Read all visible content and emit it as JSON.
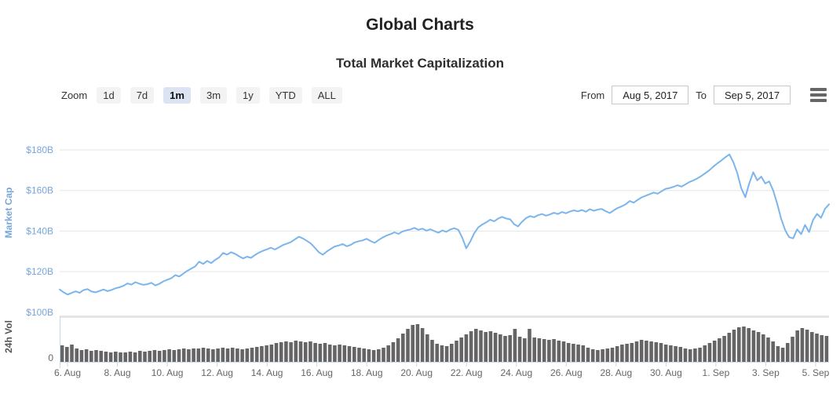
{
  "page": {
    "title": "Global Charts",
    "subtitle": "Total Market Capitalization"
  },
  "toolbar": {
    "zoom_label": "Zoom",
    "buttons": [
      {
        "label": "1d",
        "selected": false
      },
      {
        "label": "7d",
        "selected": false
      },
      {
        "label": "1m",
        "selected": true
      },
      {
        "label": "3m",
        "selected": false
      },
      {
        "label": "1y",
        "selected": false
      },
      {
        "label": "YTD",
        "selected": false
      },
      {
        "label": "ALL",
        "selected": false
      }
    ],
    "from_label": "From",
    "from_value": "Aug 5, 2017",
    "to_label": "To",
    "to_value": "Sep 5, 2017",
    "menu_icon": "hamburger-icon"
  },
  "theme": {
    "line_color": "#7cb5ec",
    "line_axis_text_color": "#76a6de",
    "bar_color": "#656565",
    "grid_color": "#e6e6e6",
    "axis_line_color": "#ccd6eb",
    "x_label_color": "#666666",
    "selected_button_bg": "#dce3f2"
  },
  "chart_data": {
    "type": "line",
    "title": "Total Market Capitalization",
    "grid": true,
    "legend": false,
    "x_axis": {
      "range_start": "Aug 5, 2017",
      "range_end": "Sep 5, 2017",
      "tick_labels": [
        "6. Aug",
        "8. Aug",
        "10. Aug",
        "12. Aug",
        "14. Aug",
        "16. Aug",
        "18. Aug",
        "20. Aug",
        "22. Aug",
        "24. Aug",
        "26. Aug",
        "28. Aug",
        "30. Aug",
        "1. Sep",
        "3. Sep",
        "5. Sep"
      ]
    },
    "series": [
      {
        "name": "Market Cap",
        "type": "line",
        "color": "#7cb5ec",
        "unit": "USD billions",
        "axis": {
          "title": "Market Cap",
          "tick_labels": [
            "$180B",
            "$160B",
            "$140B",
            "$120B",
            "$100B"
          ],
          "min": 100,
          "max": 180
        },
        "values": [
          111.2,
          109.8,
          108.7,
          109.5,
          110.3,
          109.6,
          110.9,
          111.4,
          110.2,
          109.8,
          110.5,
          111.2,
          110.4,
          111.0,
          111.8,
          112.3,
          113.0,
          114.2,
          113.6,
          114.8,
          114.1,
          113.5,
          113.8,
          114.5,
          113.2,
          114.0,
          115.2,
          116.0,
          116.8,
          118.3,
          117.6,
          119.0,
          120.4,
          121.5,
          122.6,
          124.9,
          123.8,
          125.3,
          124.2,
          125.8,
          127.0,
          129.2,
          128.4,
          129.6,
          128.8,
          127.6,
          126.5,
          127.4,
          126.8,
          128.2,
          129.4,
          130.3,
          131.0,
          131.8,
          130.9,
          132.0,
          133.1,
          133.8,
          134.6,
          135.9,
          137.2,
          136.4,
          135.2,
          133.9,
          131.8,
          129.6,
          128.3,
          129.9,
          131.2,
          132.4,
          132.9,
          133.6,
          132.5,
          133.2,
          134.4,
          135.0,
          135.4,
          136.2,
          135.1,
          134.2,
          135.6,
          136.8,
          137.8,
          138.5,
          139.4,
          138.6,
          139.8,
          140.4,
          140.8,
          141.6,
          140.6,
          141.2,
          140.2,
          140.9,
          140.0,
          139.2,
          140.3,
          139.6,
          140.8,
          141.4,
          140.6,
          136.8,
          131.5,
          134.8,
          138.9,
          141.8,
          143.2,
          144.3,
          145.6,
          144.8,
          146.2,
          147.0,
          146.2,
          145.8,
          143.4,
          142.3,
          144.6,
          146.4,
          147.4,
          146.8,
          147.8,
          148.4,
          147.6,
          148.2,
          149.0,
          148.4,
          149.4,
          148.8,
          149.6,
          150.2,
          149.7,
          150.4,
          149.5,
          150.8,
          150.0,
          150.6,
          150.9,
          149.8,
          148.9,
          150.2,
          151.4,
          152.2,
          153.2,
          154.8,
          154.0,
          155.4,
          156.6,
          157.4,
          158.2,
          159.0,
          158.4,
          159.6,
          160.8,
          161.2,
          161.8,
          162.6,
          161.9,
          163.0,
          164.2,
          165.0,
          166.0,
          167.2,
          168.6,
          170.0,
          171.8,
          173.4,
          174.8,
          176.4,
          177.8,
          174.0,
          168.5,
          161.0,
          156.7,
          163.5,
          169.0,
          165.0,
          166.8,
          163.5,
          164.5,
          160.0,
          153.5,
          146.0,
          140.5,
          137.0,
          136.4,
          140.8,
          138.5,
          143.0,
          139.5,
          145.5,
          148.5,
          146.5,
          151.0,
          153.2
        ]
      },
      {
        "name": "24h Vol",
        "type": "column",
        "color": "#656565",
        "unit": "relative height, axis unlabeled (only 0 shown)",
        "axis": {
          "title": "24h Vol",
          "tick_labels": [
            "0"
          ],
          "min": 0
        },
        "values": [
          21,
          19,
          22,
          17,
          15,
          16,
          14,
          15,
          14,
          13,
          12,
          13,
          12,
          12,
          13,
          12,
          14,
          13,
          14,
          15,
          14,
          15,
          16,
          15,
          16,
          17,
          16,
          17,
          17,
          18,
          17,
          16,
          17,
          18,
          17,
          18,
          17,
          16,
          17,
          18,
          19,
          20,
          21,
          22,
          24,
          25,
          26,
          25,
          27,
          26,
          25,
          26,
          24,
          23,
          24,
          22,
          21,
          22,
          21,
          20,
          19,
          18,
          17,
          16,
          15,
          16,
          18,
          21,
          25,
          30,
          36,
          42,
          47,
          48,
          43,
          35,
          28,
          23,
          21,
          20,
          23,
          27,
          31,
          35,
          39,
          42,
          40,
          38,
          39,
          37,
          35,
          33,
          34,
          42,
          32,
          30,
          42,
          31,
          30,
          29,
          28,
          29,
          27,
          26,
          24,
          23,
          22,
          21,
          18,
          16,
          15,
          16,
          17,
          18,
          20,
          22,
          23,
          24,
          26,
          28,
          27,
          26,
          25,
          24,
          22,
          21,
          20,
          19,
          17,
          16,
          17,
          18,
          21,
          24,
          27,
          30,
          33,
          37,
          41,
          44,
          45,
          43,
          40,
          38,
          35,
          31,
          26,
          20,
          18,
          24,
          32,
          40,
          43,
          41,
          38,
          36,
          34,
          33
        ]
      }
    ]
  }
}
